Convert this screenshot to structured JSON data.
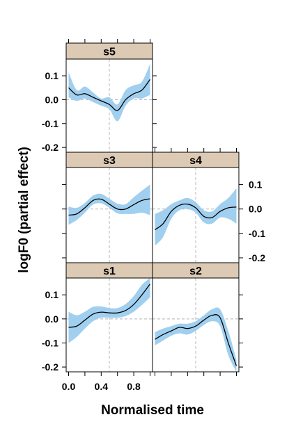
{
  "figure": {
    "xlabel": "Normalised time",
    "ylabel": "logF0 (partial effect)",
    "x_tick_labels": [
      "0.0",
      "0.4",
      "0.8"
    ],
    "y_tick_labels": [
      "0.1",
      "0.0",
      "-0.1",
      "-0.2"
    ]
  },
  "colors": {
    "strip": "#dccab5",
    "band": "#a0cfef",
    "line": "#000000",
    "reference": "#b4b4b4",
    "frame": "#000000"
  },
  "chart_data": {
    "type": "line",
    "layout": "lattice 2 columns x 3 rows; bottom row s1, s2; middle row s3, s4; top row s5",
    "xlabel": "Normalised time",
    "ylabel": "logF0 (partial effect)",
    "xlim": [
      -0.03,
      1.03
    ],
    "ylim": [
      -0.22,
      0.17
    ],
    "x_ticks": [
      0,
      0.4,
      0.8
    ],
    "y_ticks": [
      0.1,
      0.0,
      -0.1,
      -0.2
    ],
    "reference_lines": {
      "x": 0.5,
      "y": 0.0
    },
    "panels": [
      {
        "title": "s1",
        "x": [
          0,
          0.1,
          0.2,
          0.3,
          0.4,
          0.5,
          0.6,
          0.7,
          0.8,
          0.9,
          1.0
        ],
        "y": [
          -0.035,
          -0.03,
          -0.005,
          0.02,
          0.028,
          0.025,
          0.025,
          0.035,
          0.06,
          0.1,
          0.145
        ],
        "lower": [
          -0.1,
          -0.075,
          -0.04,
          -0.01,
          0.005,
          0.005,
          0.005,
          0.012,
          0.03,
          0.058,
          0.09
        ],
        "upper": [
          0.03,
          0.015,
          0.03,
          0.05,
          0.052,
          0.045,
          0.045,
          0.062,
          0.095,
          0.142,
          0.17
        ]
      },
      {
        "title": "s2",
        "x": [
          0,
          0.1,
          0.2,
          0.3,
          0.4,
          0.5,
          0.6,
          0.7,
          0.8,
          0.9,
          1.0
        ],
        "y": [
          -0.085,
          -0.065,
          -0.05,
          -0.035,
          -0.04,
          -0.03,
          -0.005,
          0.015,
          0.005,
          -0.1,
          -0.195
        ],
        "lower": [
          -0.11,
          -0.09,
          -0.07,
          -0.06,
          -0.065,
          -0.05,
          -0.025,
          -0.01,
          -0.03,
          -0.15,
          -0.22
        ],
        "upper": [
          -0.055,
          -0.04,
          -0.03,
          -0.02,
          -0.02,
          -0.01,
          0.015,
          0.04,
          0.04,
          -0.05,
          -0.17
        ]
      },
      {
        "title": "s3",
        "x": [
          0,
          0.1,
          0.2,
          0.3,
          0.4,
          0.5,
          0.6,
          0.7,
          0.8,
          0.9,
          1.0
        ],
        "y": [
          -0.025,
          -0.02,
          0.005,
          0.035,
          0.04,
          0.02,
          0.0,
          0.0,
          0.018,
          0.035,
          0.042
        ],
        "lower": [
          -0.065,
          -0.045,
          -0.015,
          0.018,
          0.023,
          0.005,
          -0.018,
          -0.02,
          -0.02,
          -0.015,
          -0.025
        ],
        "upper": [
          0.01,
          0.005,
          0.025,
          0.055,
          0.062,
          0.042,
          0.022,
          0.02,
          0.048,
          0.075,
          0.1
        ]
      },
      {
        "title": "s4",
        "x": [
          0,
          0.1,
          0.2,
          0.3,
          0.4,
          0.5,
          0.6,
          0.7,
          0.8,
          0.9,
          1.0
        ],
        "y": [
          -0.085,
          -0.06,
          -0.01,
          0.015,
          0.02,
          0.005,
          -0.03,
          -0.035,
          -0.01,
          0.005,
          0.008
        ],
        "lower": [
          -0.15,
          -0.115,
          -0.04,
          -0.005,
          0.0,
          -0.015,
          -0.055,
          -0.06,
          -0.035,
          -0.04,
          -0.06
        ],
        "upper": [
          -0.02,
          -0.005,
          0.02,
          0.035,
          0.045,
          0.028,
          -0.005,
          -0.01,
          0.02,
          0.045,
          0.085
        ]
      },
      {
        "title": "s5",
        "x": [
          0,
          0.1,
          0.2,
          0.3,
          0.4,
          0.5,
          0.6,
          0.7,
          0.8,
          0.9,
          1.0
        ],
        "y": [
          0.05,
          0.02,
          0.025,
          0.01,
          -0.005,
          -0.02,
          -0.045,
          0.0,
          0.025,
          0.04,
          0.085
        ],
        "lower": [
          0.01,
          -0.005,
          0.005,
          -0.01,
          -0.025,
          -0.04,
          -0.09,
          -0.025,
          0.005,
          0.005,
          0.02
        ],
        "upper": [
          0.115,
          0.04,
          0.055,
          0.03,
          0.005,
          0.01,
          -0.02,
          0.04,
          0.06,
          0.075,
          0.15
        ]
      }
    ]
  }
}
